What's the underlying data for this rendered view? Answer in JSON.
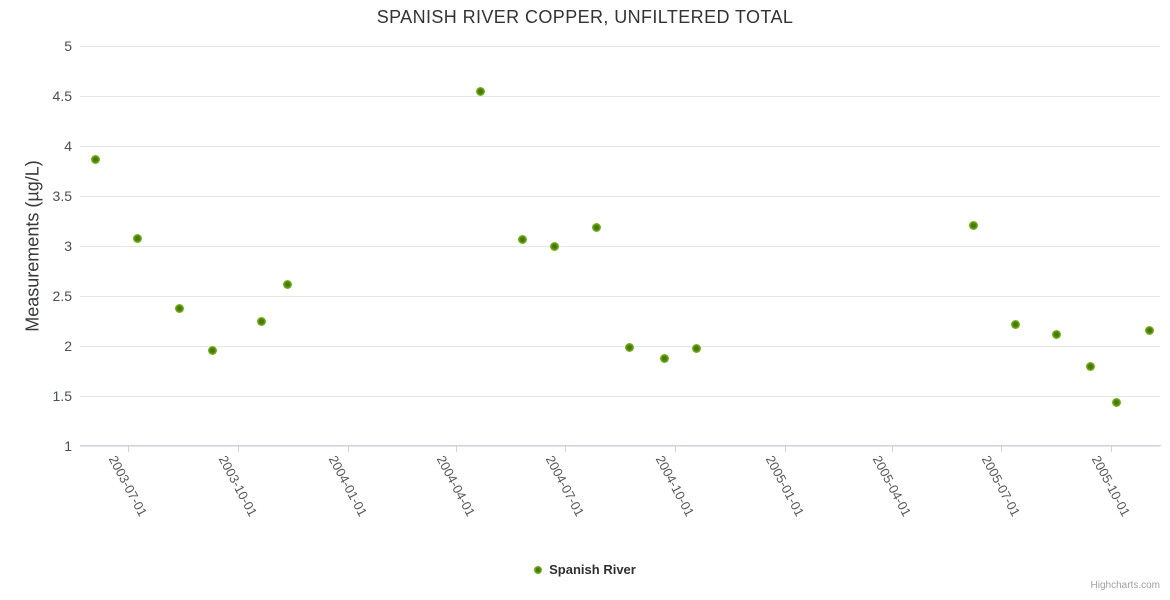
{
  "title": "SPANISH RIVER COPPER, UNFILTERED TOTAL",
  "y_axis": {
    "title": "Measurements (µg/L)",
    "ticks": [
      5,
      4.5,
      4,
      3.5,
      3,
      2.5,
      2,
      1.5,
      1
    ]
  },
  "x_axis": {
    "ticks": [
      "2003-07-01",
      "2003-10-01",
      "2004-01-01",
      "2004-04-01",
      "2004-07-01",
      "2004-10-01",
      "2005-01-01",
      "2005-04-01",
      "2005-07-01",
      "2005-10-01"
    ]
  },
  "legend": {
    "label": "Spanish River"
  },
  "credits": {
    "label": "Highcharts.com"
  },
  "colors": {
    "point": "#77b11c",
    "point_center": "#457a08",
    "grid": "#e6e6e6",
    "axis": "#c9d4e4",
    "title_text": "#333333",
    "y_label": "#4a4d55",
    "x_label": "#58595e",
    "axis_title": "#37393f",
    "legend_text": "#303030",
    "credits_text": "#a0a0a6"
  },
  "chart_data": {
    "type": "scatter",
    "title": "SPANISH RIVER COPPER, UNFILTERED TOTAL",
    "xlabel": "",
    "ylabel": "Measurements (µg/L)",
    "ylim": [
      1,
      5
    ],
    "y_ticks": [
      1,
      1.5,
      2,
      2.5,
      3,
      3.5,
      4,
      4.5,
      5
    ],
    "x_range": [
      "2003-05-22",
      "2005-11-11"
    ],
    "x_tick_labels": [
      "2003-07-01",
      "2003-10-01",
      "2004-01-01",
      "2004-04-01",
      "2004-07-01",
      "2004-10-01",
      "2005-01-01",
      "2005-04-01",
      "2005-07-01",
      "2005-10-01"
    ],
    "grid": true,
    "legend_position": "bottom",
    "series": [
      {
        "name": "Spanish River",
        "color": "#77b11c",
        "points": [
          {
            "x": "2003-06-04",
            "y": 3.87
          },
          {
            "x": "2003-07-09",
            "y": 3.08
          },
          {
            "x": "2003-08-13",
            "y": 2.38
          },
          {
            "x": "2003-09-10",
            "y": 1.96
          },
          {
            "x": "2003-10-21",
            "y": 2.25
          },
          {
            "x": "2003-11-12",
            "y": 2.62
          },
          {
            "x": "2004-04-21",
            "y": 4.55
          },
          {
            "x": "2004-05-26",
            "y": 3.07
          },
          {
            "x": "2004-06-22",
            "y": 3.0
          },
          {
            "x": "2004-07-27",
            "y": 3.19
          },
          {
            "x": "2004-08-24",
            "y": 1.99
          },
          {
            "x": "2004-09-22",
            "y": 1.88
          },
          {
            "x": "2004-10-19",
            "y": 1.98
          },
          {
            "x": "2005-06-08",
            "y": 3.2
          },
          {
            "x": "2005-07-13",
            "y": 2.22
          },
          {
            "x": "2005-08-16",
            "y": 2.12
          },
          {
            "x": "2005-09-14",
            "y": 1.8
          },
          {
            "x": "2005-10-06",
            "y": 1.44
          },
          {
            "x": "2005-11-02",
            "y": 2.16
          }
        ]
      }
    ]
  }
}
